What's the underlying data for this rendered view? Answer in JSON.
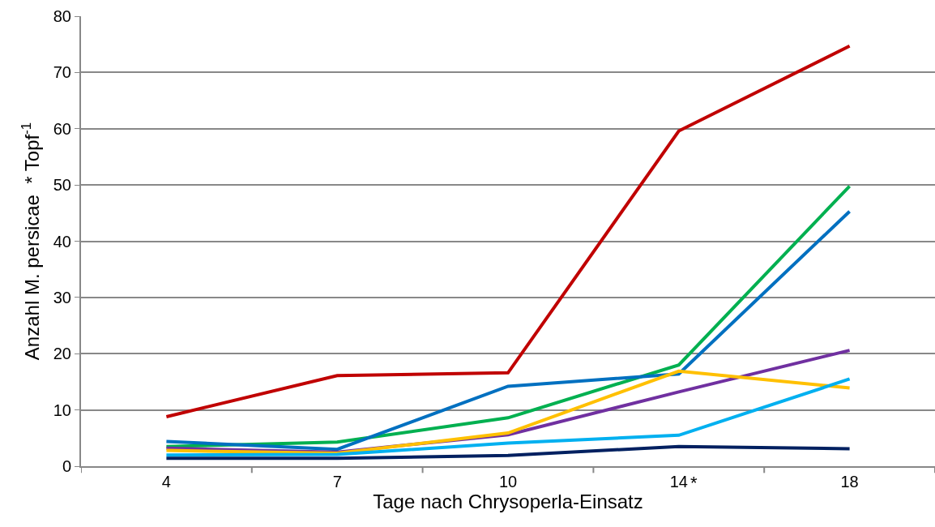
{
  "chart_data": {
    "type": "line",
    "xlabel": "Tage nach Chrysoperla-Einsatz",
    "ylabel": "Anzahl M. persicae  * Topf$^{-1}$",
    "categories": [
      "4",
      "7",
      "10",
      "14",
      "18"
    ],
    "series": [
      {
        "color": "#c00000",
        "values": [
          8.8,
          16.1,
          16.6,
          59.6,
          74.7
        ]
      },
      {
        "color": "#00b050",
        "values": [
          3.5,
          4.3,
          8.6,
          18.0,
          49.8
        ]
      },
      {
        "color": "#0070c0",
        "values": [
          4.4,
          3.0,
          14.2,
          16.4,
          45.3
        ]
      },
      {
        "color": "#7030a0",
        "values": [
          3.2,
          2.5,
          5.6,
          13.2,
          20.6
        ]
      },
      {
        "color": "#ffc000",
        "values": [
          2.8,
          2.3,
          5.9,
          16.9,
          13.9
        ]
      },
      {
        "color": "#00b0f0",
        "values": [
          2.0,
          2.1,
          4.1,
          5.5,
          15.5
        ]
      },
      {
        "color": "#002060",
        "values": [
          1.4,
          1.4,
          1.9,
          3.5,
          3.1
        ]
      }
    ],
    "ylim": [
      0,
      80
    ],
    "yticks": [
      0,
      10,
      20,
      30,
      40,
      50,
      60,
      70,
      80
    ],
    "grid": "y",
    "marker": "none",
    "line_style": "solid",
    "annotations": [
      "*"
    ]
  }
}
